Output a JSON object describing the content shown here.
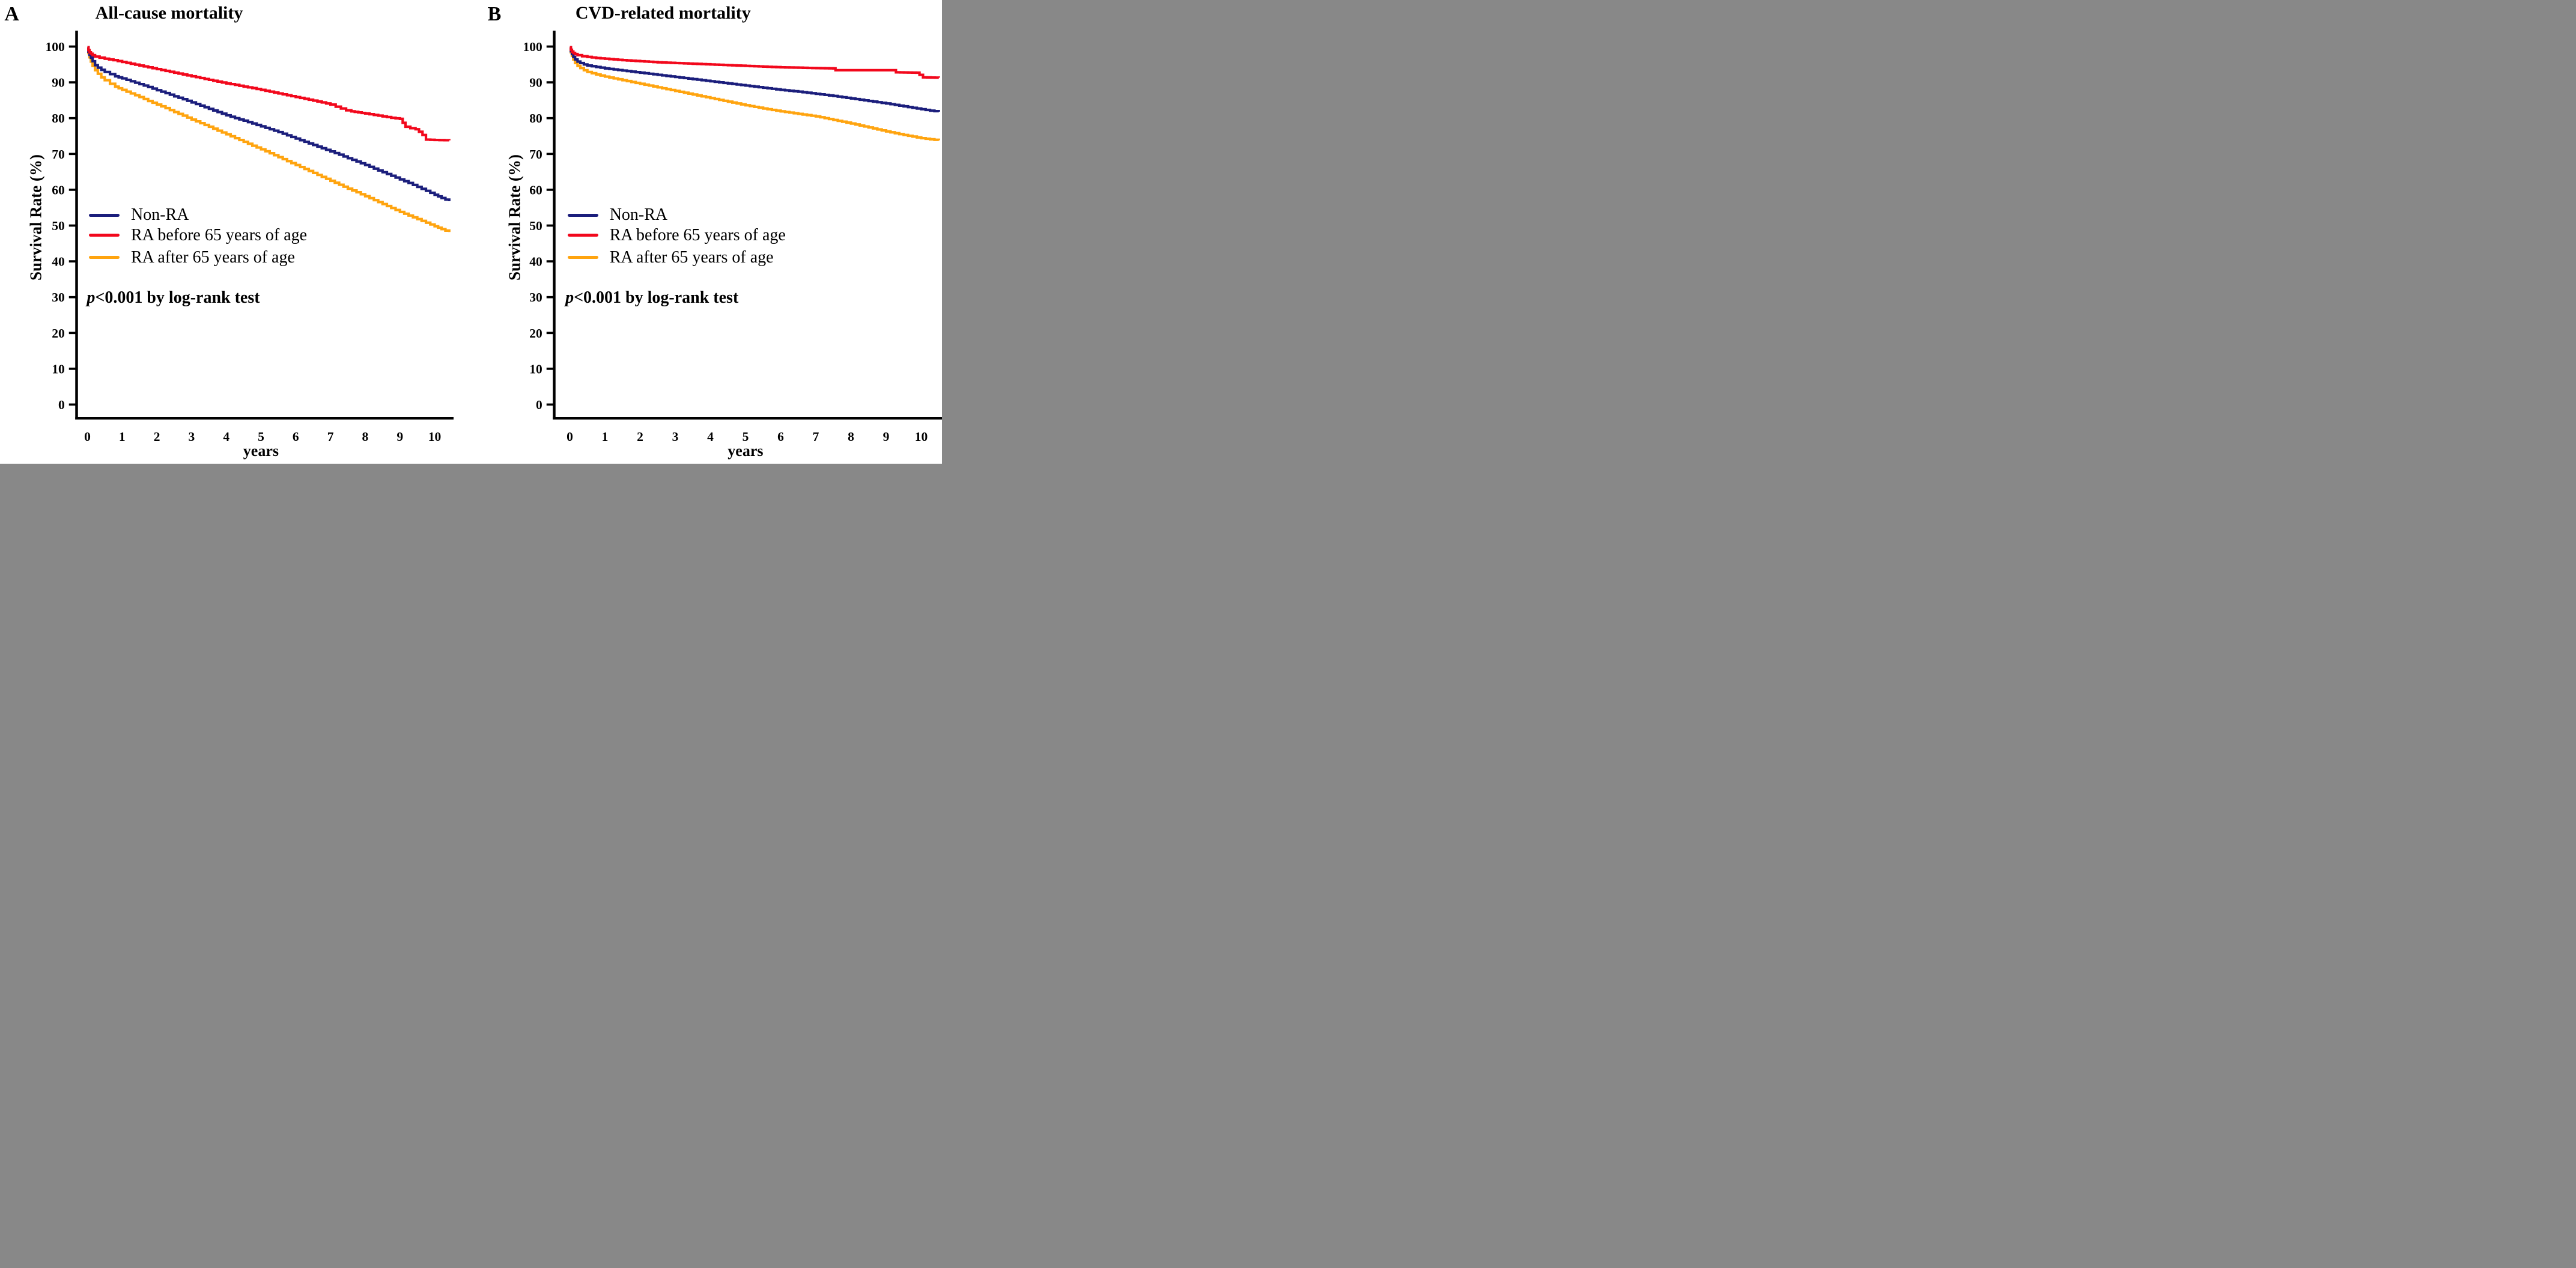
{
  "figure": {
    "background": "#ffffff",
    "text_color": "#000000",
    "panels": [
      {
        "corner_label": "A",
        "title": "All-cause mortality",
        "y_axis_label": "Survival Rate (%)",
        "x_axis_label": "years",
        "p_italic": "p",
        "p_text": "<0.001 by log-rank test",
        "legend": [
          {
            "label": "Non-RA",
            "color": "#1b1e7c"
          },
          {
            "label": "RA before 65 years of age",
            "color": "#f2081c"
          },
          {
            "label": "RA after 65 years of age",
            "color": "#ffa40f"
          }
        ]
      },
      {
        "corner_label": "B",
        "title": "CVD-related mortality",
        "y_axis_label": "Survival Rate (%)",
        "x_axis_label": "years",
        "p_italic": "p",
        "p_text": "<0.001 by log-rank test",
        "legend": [
          {
            "label": "Non-RA",
            "color": "#1b1e7c"
          },
          {
            "label": "RA before 65 years of age",
            "color": "#f2081c"
          },
          {
            "label": "RA after 65 years of age",
            "color": "#ffa40f"
          }
        ]
      }
    ]
  },
  "chart_data": [
    {
      "type": "line",
      "subtype": "kaplan-meier-step",
      "title": "All-cause mortality",
      "xlabel": "years",
      "ylabel": "Survival Rate (%)",
      "xlim": [
        0,
        10.5
      ],
      "ylim": [
        0,
        100
      ],
      "x_ticks": [
        0,
        1,
        2,
        3,
        4,
        5,
        6,
        7,
        8,
        9,
        10
      ],
      "y_ticks": [
        0,
        10,
        20,
        30,
        40,
        50,
        60,
        70,
        80,
        90,
        100
      ],
      "grid": false,
      "legend_position": "inside-left-middle",
      "annotation": "p<0.001 by log-rank test",
      "series": [
        {
          "name": "Non-RA",
          "color": "#1b1e7c",
          "points": [
            [
              0,
              99.8
            ],
            [
              0.03,
              98.6
            ],
            [
              0.06,
              97.7
            ],
            [
              0.1,
              96.9
            ],
            [
              0.15,
              95.9
            ],
            [
              0.22,
              94.8
            ],
            [
              0.3,
              94.1
            ],
            [
              0.4,
              93.5
            ],
            [
              0.5,
              92.9
            ],
            [
              0.65,
              92.3
            ],
            [
              0.8,
              91.7
            ],
            [
              1,
              91.1
            ],
            [
              1.25,
              90.3
            ],
            [
              1.5,
              89.5
            ],
            [
              1.75,
              88.7
            ],
            [
              2,
              87.8
            ],
            [
              2.25,
              87.0
            ],
            [
              2.5,
              86.1
            ],
            [
              2.75,
              85.3
            ],
            [
              3,
              84.4
            ],
            [
              3.25,
              83.5
            ],
            [
              3.5,
              82.6
            ],
            [
              3.75,
              81.7
            ],
            [
              4,
              80.8
            ],
            [
              4.25,
              80.0
            ],
            [
              4.5,
              79.3
            ],
            [
              4.75,
              78.5
            ],
            [
              5,
              77.7
            ],
            [
              5.25,
              76.9
            ],
            [
              5.5,
              76.1
            ],
            [
              5.75,
              75.2
            ],
            [
              6,
              74.3
            ],
            [
              6.25,
              73.4
            ],
            [
              6.5,
              72.5
            ],
            [
              6.75,
              71.6
            ],
            [
              7,
              70.7
            ],
            [
              7.25,
              69.8
            ],
            [
              7.5,
              68.8
            ],
            [
              7.75,
              67.9
            ],
            [
              8,
              66.9
            ],
            [
              8.25,
              65.9
            ],
            [
              8.5,
              64.9
            ],
            [
              8.75,
              63.9
            ],
            [
              9,
              62.9
            ],
            [
              9.25,
              61.9
            ],
            [
              9.5,
              60.8
            ],
            [
              9.75,
              59.7
            ],
            [
              10,
              58.6
            ],
            [
              10.2,
              57.7
            ],
            [
              10.42,
              56.8
            ]
          ]
        },
        {
          "name": "RA before 65 years of age",
          "color": "#f2081c",
          "points": [
            [
              0,
              99.8
            ],
            [
              0.03,
              99.0
            ],
            [
              0.06,
              98.4
            ],
            [
              0.1,
              98.0
            ],
            [
              0.15,
              97.6
            ],
            [
              0.22,
              97.2
            ],
            [
              0.35,
              96.9
            ],
            [
              0.5,
              96.6
            ],
            [
              0.75,
              96.2
            ],
            [
              1,
              95.7
            ],
            [
              1.25,
              95.2
            ],
            [
              1.5,
              94.7
            ],
            [
              1.75,
              94.2
            ],
            [
              2,
              93.7
            ],
            [
              2.25,
              93.2
            ],
            [
              2.5,
              92.7
            ],
            [
              2.75,
              92.2
            ],
            [
              3,
              91.7
            ],
            [
              3.25,
              91.2
            ],
            [
              3.5,
              90.7
            ],
            [
              3.75,
              90.2
            ],
            [
              4,
              89.7
            ],
            [
              4.25,
              89.3
            ],
            [
              4.5,
              88.8
            ],
            [
              4.75,
              88.4
            ],
            [
              5,
              87.9
            ],
            [
              5.25,
              87.4
            ],
            [
              5.5,
              86.9
            ],
            [
              5.75,
              86.4
            ],
            [
              6,
              85.9
            ],
            [
              6.25,
              85.4
            ],
            [
              6.5,
              84.9
            ],
            [
              6.75,
              84.4
            ],
            [
              7,
              83.8
            ],
            [
              7.15,
              83.2
            ],
            [
              7.3,
              82.7
            ],
            [
              7.45,
              82.2
            ],
            [
              7.6,
              81.9
            ],
            [
              7.8,
              81.6
            ],
            [
              8,
              81.3
            ],
            [
              8.25,
              80.9
            ],
            [
              8.5,
              80.5
            ],
            [
              8.75,
              80.1
            ],
            [
              9,
              79.8
            ],
            [
              9.08,
              78.7
            ],
            [
              9.16,
              77.6
            ],
            [
              9.3,
              77.2
            ],
            [
              9.45,
              76.9
            ],
            [
              9.55,
              76.2
            ],
            [
              9.65,
              75.3
            ],
            [
              9.75,
              74.0
            ],
            [
              10,
              73.9
            ],
            [
              10.42,
              73.8
            ]
          ]
        },
        {
          "name": "RA after 65 years of age",
          "color": "#ffa40f",
          "points": [
            [
              0,
              99.8
            ],
            [
              0.03,
              98.2
            ],
            [
              0.06,
              97.0
            ],
            [
              0.1,
              95.8
            ],
            [
              0.15,
              94.6
            ],
            [
              0.22,
              93.4
            ],
            [
              0.3,
              92.4
            ],
            [
              0.4,
              91.4
            ],
            [
              0.5,
              90.6
            ],
            [
              0.65,
              89.6
            ],
            [
              0.8,
              88.8
            ],
            [
              1,
              87.9
            ],
            [
              1.25,
              86.9
            ],
            [
              1.5,
              85.9
            ],
            [
              1.75,
              84.8
            ],
            [
              2,
              83.8
            ],
            [
              2.25,
              82.8
            ],
            [
              2.5,
              81.7
            ],
            [
              2.75,
              80.7
            ],
            [
              3,
              79.6
            ],
            [
              3.25,
              78.6
            ],
            [
              3.5,
              77.6
            ],
            [
              3.75,
              76.5
            ],
            [
              4,
              75.5
            ],
            [
              4.25,
              74.4
            ],
            [
              4.5,
              73.4
            ],
            [
              4.75,
              72.3
            ],
            [
              5,
              71.3
            ],
            [
              5.25,
              70.2
            ],
            [
              5.5,
              69.1
            ],
            [
              5.75,
              68.0
            ],
            [
              6,
              66.9
            ],
            [
              6.25,
              65.8
            ],
            [
              6.5,
              64.7
            ],
            [
              6.75,
              63.6
            ],
            [
              7,
              62.5
            ],
            [
              7.25,
              61.4
            ],
            [
              7.5,
              60.3
            ],
            [
              7.75,
              59.3
            ],
            [
              8,
              58.2
            ],
            [
              8.25,
              57.1
            ],
            [
              8.5,
              56.0
            ],
            [
              8.75,
              54.9
            ],
            [
              9,
              53.8
            ],
            [
              9.25,
              52.8
            ],
            [
              9.5,
              51.8
            ],
            [
              9.75,
              50.8
            ],
            [
              10,
              49.8
            ],
            [
              10.2,
              49.0
            ],
            [
              10.42,
              48.2
            ]
          ]
        }
      ]
    },
    {
      "type": "line",
      "subtype": "kaplan-meier-step",
      "title": "CVD-related mortality",
      "xlabel": "years",
      "ylabel": "Survival Rate (%)",
      "xlim": [
        0,
        10.5
      ],
      "ylim": [
        0,
        100
      ],
      "x_ticks": [
        0,
        1,
        2,
        3,
        4,
        5,
        6,
        7,
        8,
        9,
        10
      ],
      "y_ticks": [
        0,
        10,
        20,
        30,
        40,
        50,
        60,
        70,
        80,
        90,
        100
      ],
      "grid": false,
      "legend_position": "inside-left-middle",
      "annotation": "p<0.001 by log-rank test",
      "series": [
        {
          "name": "Non-RA",
          "color": "#1b1e7c",
          "points": [
            [
              0,
              99.8
            ],
            [
              0.03,
              98.7
            ],
            [
              0.06,
              97.9
            ],
            [
              0.1,
              97.1
            ],
            [
              0.15,
              96.4
            ],
            [
              0.22,
              95.8
            ],
            [
              0.3,
              95.4
            ],
            [
              0.4,
              95.0
            ],
            [
              0.5,
              94.7
            ],
            [
              0.75,
              94.3
            ],
            [
              1,
              93.9
            ],
            [
              1.5,
              93.3
            ],
            [
              2,
              92.7
            ],
            [
              2.5,
              92.1
            ],
            [
              3,
              91.5
            ],
            [
              3.5,
              90.9
            ],
            [
              4,
              90.3
            ],
            [
              4.5,
              89.7
            ],
            [
              5,
              89.1
            ],
            [
              5.5,
              88.5
            ],
            [
              6,
              87.9
            ],
            [
              6.5,
              87.4
            ],
            [
              7,
              86.8
            ],
            [
              7.5,
              86.2
            ],
            [
              8,
              85.5
            ],
            [
              8.5,
              84.8
            ],
            [
              9,
              84.1
            ],
            [
              9.5,
              83.3
            ],
            [
              10,
              82.5
            ],
            [
              10.25,
              82.1
            ],
            [
              10.5,
              81.8
            ]
          ]
        },
        {
          "name": "RA before 65 years of age",
          "color": "#f2081c",
          "points": [
            [
              0,
              99.8
            ],
            [
              0.03,
              99.1
            ],
            [
              0.06,
              98.6
            ],
            [
              0.1,
              98.2
            ],
            [
              0.15,
              97.9
            ],
            [
              0.22,
              97.6
            ],
            [
              0.35,
              97.3
            ],
            [
              0.5,
              97.1
            ],
            [
              0.75,
              96.8
            ],
            [
              1,
              96.6
            ],
            [
              1.5,
              96.2
            ],
            [
              2,
              95.9
            ],
            [
              2.5,
              95.6
            ],
            [
              3,
              95.4
            ],
            [
              3.5,
              95.2
            ],
            [
              4,
              95.0
            ],
            [
              4.5,
              94.8
            ],
            [
              5,
              94.6
            ],
            [
              5.5,
              94.4
            ],
            [
              6,
              94.2
            ],
            [
              6.5,
              94.1
            ],
            [
              6.9,
              94.0
            ],
            [
              7.5,
              93.9
            ],
            [
              7.56,
              93.4
            ],
            [
              9.2,
              93.4
            ],
            [
              9.28,
              92.8
            ],
            [
              9.85,
              92.7
            ],
            [
              9.95,
              92.1
            ],
            [
              10.05,
              91.4
            ],
            [
              10.5,
              91.3
            ]
          ]
        },
        {
          "name": "RA after 65 years of age",
          "color": "#ffa40f",
          "points": [
            [
              0,
              99.8
            ],
            [
              0.03,
              98.4
            ],
            [
              0.06,
              97.4
            ],
            [
              0.1,
              96.4
            ],
            [
              0.15,
              95.4
            ],
            [
              0.22,
              94.6
            ],
            [
              0.3,
              94.0
            ],
            [
              0.4,
              93.4
            ],
            [
              0.5,
              92.9
            ],
            [
              0.75,
              92.2
            ],
            [
              1,
              91.6
            ],
            [
              1.5,
              90.6
            ],
            [
              2,
              89.6
            ],
            [
              2.5,
              88.6
            ],
            [
              3,
              87.6
            ],
            [
              3.5,
              86.6
            ],
            [
              4,
              85.6
            ],
            [
              4.5,
              84.6
            ],
            [
              5,
              83.6
            ],
            [
              5.5,
              82.7
            ],
            [
              6,
              81.9
            ],
            [
              6.5,
              81.2
            ],
            [
              7,
              80.5
            ],
            [
              7.5,
              79.5
            ],
            [
              8,
              78.5
            ],
            [
              8.5,
              77.4
            ],
            [
              9,
              76.3
            ],
            [
              9.5,
              75.3
            ],
            [
              10,
              74.4
            ],
            [
              10.25,
              74.1
            ],
            [
              10.5,
              73.8
            ]
          ]
        }
      ]
    }
  ]
}
